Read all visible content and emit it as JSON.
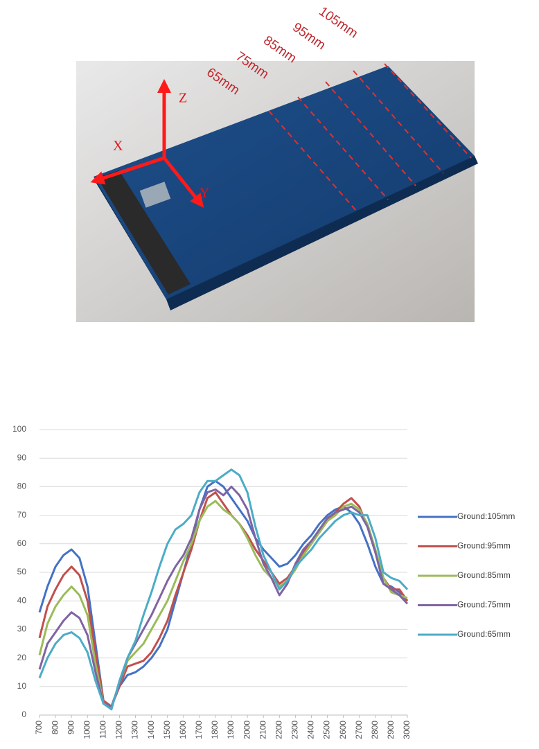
{
  "photo": {
    "labels": [
      "Z",
      "X",
      "Y",
      "65mm",
      "75mm",
      "85mm",
      "95mm",
      "105mm"
    ]
  },
  "chart_data": {
    "type": "line",
    "x": [
      700,
      750,
      800,
      850,
      900,
      950,
      1000,
      1050,
      1100,
      1150,
      1200,
      1250,
      1300,
      1350,
      1400,
      1450,
      1500,
      1550,
      1600,
      1650,
      1700,
      1750,
      1800,
      1850,
      1900,
      1950,
      2000,
      2050,
      2100,
      2150,
      2200,
      2250,
      2300,
      2350,
      2400,
      2450,
      2500,
      2550,
      2600,
      2650,
      2700,
      2750,
      2800,
      2850,
      2900,
      2950,
      3000
    ],
    "xlim": [
      700,
      3000
    ],
    "xticks": [
      700,
      800,
      900,
      1000,
      1100,
      1200,
      1300,
      1400,
      1500,
      1600,
      1700,
      1800,
      1900,
      2000,
      2100,
      2200,
      2300,
      2400,
      2500,
      2600,
      2700,
      2800,
      2900,
      3000
    ],
    "ylim": [
      0,
      100
    ],
    "yticks": [
      0,
      10,
      20,
      30,
      40,
      50,
      60,
      70,
      80,
      90,
      100
    ],
    "grid": true,
    "legend": "right",
    "series": [
      {
        "name": "Ground:105mm",
        "color": "#4472c4",
        "values": [
          36,
          45,
          52,
          56,
          58,
          55,
          45,
          25,
          5,
          3,
          10,
          14,
          15,
          17,
          20,
          24,
          30,
          40,
          50,
          60,
          72,
          80,
          82,
          80,
          76,
          72,
          68,
          62,
          58,
          55,
          52,
          53,
          56,
          60,
          63,
          67,
          70,
          72,
          73,
          71,
          67,
          60,
          52,
          46,
          45,
          43,
          40
        ]
      },
      {
        "name": "Ground:95mm",
        "color": "#c0504d",
        "values": [
          27,
          38,
          44,
          49,
          52,
          49,
          40,
          22,
          5,
          3,
          10,
          17,
          18,
          19,
          22,
          27,
          33,
          42,
          50,
          58,
          68,
          76,
          78,
          74,
          70,
          67,
          63,
          58,
          54,
          50,
          46,
          48,
          52,
          57,
          61,
          64,
          68,
          71,
          74,
          76,
          73,
          66,
          57,
          48,
          44,
          44,
          40
        ]
      },
      {
        "name": "Ground:85mm",
        "color": "#9bbb59",
        "values": [
          21,
          32,
          38,
          42,
          45,
          42,
          35,
          18,
          4,
          3,
          11,
          19,
          22,
          25,
          30,
          35,
          40,
          47,
          54,
          60,
          68,
          73,
          75,
          72,
          70,
          67,
          62,
          56,
          51,
          48,
          45,
          47,
          51,
          56,
          60,
          64,
          68,
          70,
          73,
          74,
          72,
          67,
          58,
          48,
          43,
          42,
          41
        ]
      },
      {
        "name": "Ground:75mm",
        "color": "#8064a2",
        "values": [
          16,
          25,
          29,
          33,
          36,
          34,
          28,
          15,
          4,
          3,
          11,
          20,
          25,
          30,
          35,
          41,
          47,
          52,
          56,
          62,
          72,
          78,
          79,
          77,
          80,
          77,
          72,
          62,
          53,
          48,
          42,
          46,
          53,
          58,
          61,
          65,
          69,
          71,
          72,
          73,
          71,
          66,
          57,
          46,
          44,
          42,
          39
        ]
      },
      {
        "name": "Ground:65mm",
        "color": "#4bacc6",
        "values": [
          13,
          20,
          25,
          28,
          29,
          27,
          22,
          12,
          4,
          2,
          12,
          20,
          26,
          35,
          43,
          52,
          60,
          65,
          67,
          70,
          78,
          82,
          82,
          84,
          86,
          84,
          78,
          66,
          56,
          50,
          44,
          47,
          52,
          55,
          58,
          62,
          65,
          68,
          70,
          71,
          70,
          70,
          62,
          50,
          48,
          47,
          44
        ]
      }
    ]
  }
}
